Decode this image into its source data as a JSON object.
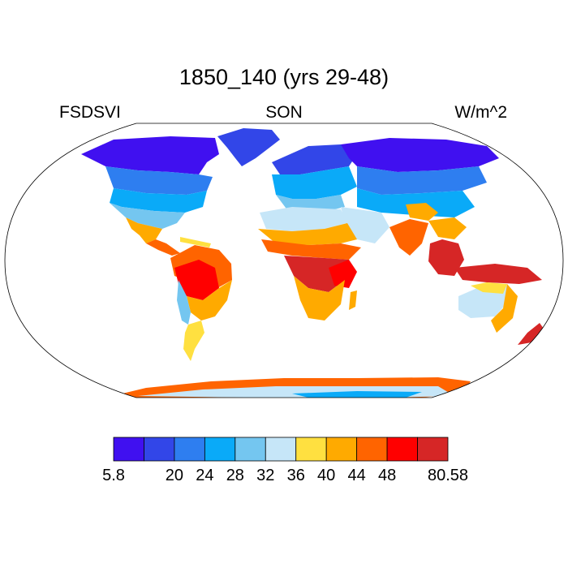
{
  "title": "1850_140 (yrs 29-48)",
  "left_label": "FSDSVI",
  "center_label": "SON",
  "right_label": "W/m^2",
  "colorbar": {
    "colors": [
      "#4010f0",
      "#3246e8",
      "#2e7ef0",
      "#0aaaf8",
      "#74c6f0",
      "#c6e6f8",
      "#ffe040",
      "#ffaa00",
      "#ff6400",
      "#ff0000",
      "#d62626"
    ],
    "tick_labels": [
      "5.8",
      "",
      "20",
      "24",
      "28",
      "32",
      "36",
      "40",
      "44",
      "48",
      "",
      "80.58"
    ]
  }
}
